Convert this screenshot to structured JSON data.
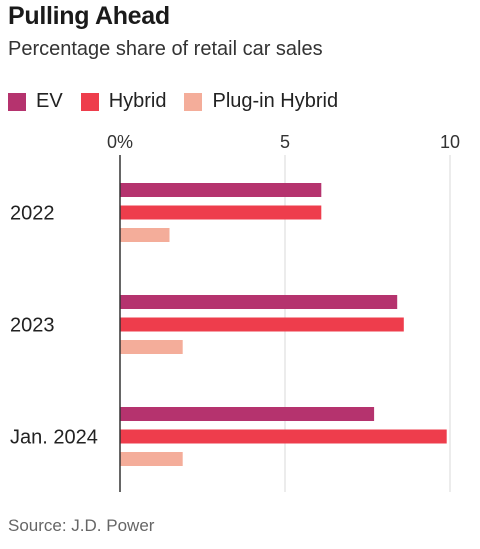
{
  "header": {
    "title": "Pulling Ahead",
    "subtitle": "Percentage share of retail car sales"
  },
  "colors": {
    "ev": "#b5336e",
    "hybrid": "#ee3d4c",
    "plugin_hybrid": "#f4ad9a",
    "axis": "#333333",
    "grid": "#d9d9d9"
  },
  "source": "Source: J.D. Power",
  "chart_data": {
    "type": "bar",
    "orientation": "horizontal",
    "title": "Pulling Ahead",
    "subtitle": "Percentage share of retail car sales",
    "categories": [
      "2022",
      "2023",
      "Jan. 2024"
    ],
    "series": [
      {
        "name": "EV",
        "values": [
          6.1,
          8.4,
          7.7
        ]
      },
      {
        "name": "Hybrid",
        "values": [
          6.1,
          8.6,
          9.9
        ]
      },
      {
        "name": "Plug-in Hybrid",
        "values": [
          1.5,
          1.9,
          1.9
        ]
      }
    ],
    "x_ticks": [
      "0%",
      "5",
      "10"
    ],
    "x_tick_values": [
      0,
      5,
      10
    ],
    "xlim": [
      0,
      10
    ],
    "grid": true,
    "legend_position": "top-left"
  }
}
